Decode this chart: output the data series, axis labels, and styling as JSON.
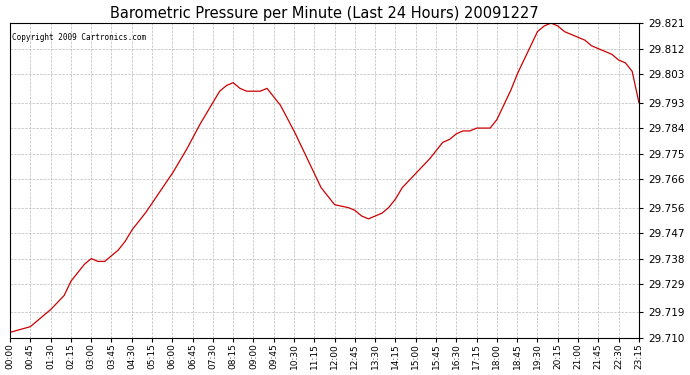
{
  "title": "Barometric Pressure per Minute (Last 24 Hours) 20091227",
  "copyright": "Copyright 2009 Cartronics.com",
  "line_color": "#cc0000",
  "bg_color": "#ffffff",
  "plot_bg_color": "#ffffff",
  "grid_color": "#bbbbbb",
  "ylim": [
    29.71,
    29.821
  ],
  "yticks": [
    29.71,
    29.719,
    29.729,
    29.738,
    29.747,
    29.756,
    29.766,
    29.775,
    29.784,
    29.793,
    29.803,
    29.812,
    29.821
  ],
  "xtick_labels": [
    "00:00",
    "00:45",
    "01:30",
    "02:15",
    "03:00",
    "03:45",
    "04:30",
    "05:15",
    "06:00",
    "06:45",
    "07:30",
    "08:15",
    "09:00",
    "09:45",
    "10:30",
    "11:15",
    "12:00",
    "12:45",
    "13:30",
    "14:15",
    "15:00",
    "15:45",
    "16:30",
    "17:15",
    "18:00",
    "18:45",
    "19:30",
    "20:15",
    "21:00",
    "21:45",
    "22:30",
    "23:15"
  ],
  "keypoints_x": [
    0,
    45,
    60,
    90,
    120,
    135,
    150,
    165,
    180,
    195,
    210,
    225,
    240,
    255,
    270,
    300,
    330,
    360,
    390,
    420,
    450,
    465,
    480,
    495,
    510,
    525,
    540,
    555,
    570,
    600,
    630,
    660,
    690,
    720,
    750,
    765,
    780,
    795,
    810,
    825,
    840,
    855,
    870,
    900,
    930,
    945,
    960,
    975,
    990,
    1005,
    1020,
    1035,
    1050,
    1065,
    1080,
    1095,
    1110,
    1125,
    1140,
    1155,
    1170,
    1185,
    1200,
    1215,
    1230,
    1245,
    1260,
    1275,
    1290,
    1305,
    1320,
    1335,
    1350,
    1365,
    1380,
    1395
  ],
  "keypoints_y": [
    29.712,
    29.714,
    29.716,
    29.72,
    29.725,
    29.73,
    29.733,
    29.736,
    29.738,
    29.737,
    29.737,
    29.739,
    29.741,
    29.744,
    29.748,
    29.754,
    29.761,
    29.768,
    29.776,
    29.785,
    29.793,
    29.797,
    29.799,
    29.8,
    29.798,
    29.797,
    29.797,
    29.797,
    29.798,
    29.792,
    29.783,
    29.773,
    29.763,
    29.757,
    29.756,
    29.755,
    29.753,
    29.752,
    29.753,
    29.754,
    29.756,
    29.759,
    29.763,
    29.768,
    29.773,
    29.776,
    29.779,
    29.78,
    29.782,
    29.783,
    29.783,
    29.784,
    29.784,
    29.784,
    29.787,
    29.792,
    29.797,
    29.803,
    29.808,
    29.813,
    29.818,
    29.82,
    29.821,
    29.82,
    29.818,
    29.817,
    29.816,
    29.815,
    29.813,
    29.812,
    29.811,
    29.81,
    29.808,
    29.807,
    29.804,
    29.793
  ]
}
